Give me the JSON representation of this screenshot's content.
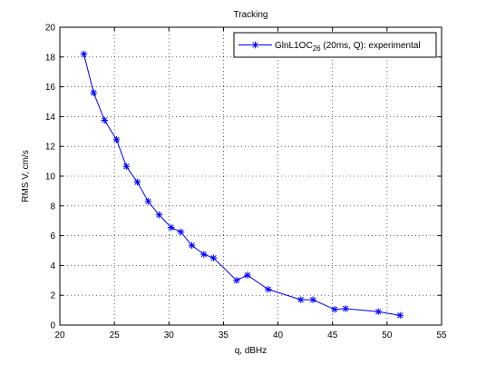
{
  "chart_data": {
    "type": "line",
    "title": "Tracking",
    "xlabel": "q, dBHz",
    "ylabel": "RMS V, cm/s",
    "xlim": [
      20,
      55
    ],
    "ylim": [
      0,
      20
    ],
    "xticks": [
      20,
      25,
      30,
      35,
      40,
      45,
      50,
      55
    ],
    "yticks": [
      0,
      2,
      4,
      6,
      8,
      10,
      12,
      14,
      16,
      18,
      20
    ],
    "grid": true,
    "legend_position": "top-right",
    "series": [
      {
        "name_main": "GlnL1OC",
        "name_sub": "26",
        "name_rest": " (20ms, Q): experimental",
        "color": "#0000ff",
        "marker": "asterisk",
        "x": [
          22.2,
          23.1,
          24.1,
          25.2,
          26.1,
          27.1,
          28.1,
          29.1,
          30.2,
          31.1,
          32.1,
          33.2,
          34.1,
          36.2,
          37.2,
          39.1,
          42.1,
          43.2,
          45.2,
          46.2,
          49.2,
          51.2
        ],
        "y": [
          18.2,
          15.6,
          13.75,
          12.45,
          10.65,
          9.6,
          8.3,
          7.4,
          6.55,
          6.25,
          5.35,
          4.75,
          4.5,
          3.0,
          3.35,
          2.4,
          1.7,
          1.7,
          1.05,
          1.1,
          0.9,
          0.65
        ]
      }
    ]
  }
}
